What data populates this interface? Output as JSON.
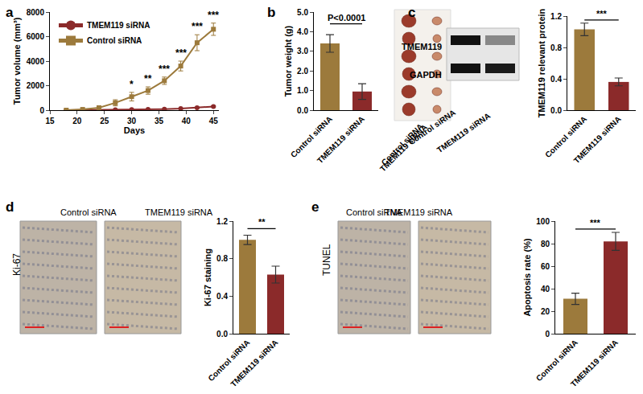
{
  "chart_data": [
    {
      "panel": "a",
      "type": "line",
      "x": [
        18,
        21,
        24,
        27,
        30,
        33,
        36,
        39,
        42,
        45
      ],
      "series": [
        {
          "name": "TMEM119 siRNA",
          "color": "#8b2a2a",
          "marker": "circle",
          "values": [
            0,
            10,
            20,
            30,
            50,
            70,
            90,
            130,
            200,
            300
          ],
          "errors": [
            5,
            5,
            10,
            10,
            15,
            20,
            20,
            30,
            40,
            50
          ]
        },
        {
          "name": "Control siRNA",
          "color": "#9c7a3c",
          "marker": "square",
          "values": [
            0,
            60,
            200,
            600,
            1100,
            1600,
            2400,
            3600,
            5500,
            6600
          ],
          "errors": [
            20,
            40,
            100,
            250,
            350,
            300,
            300,
            400,
            650,
            500
          ]
        }
      ],
      "xlabel": "Days",
      "ylabel": "Tumor volume (mm³)",
      "xlim": [
        15,
        46
      ],
      "xticks": [
        15,
        20,
        25,
        30,
        35,
        40,
        45
      ],
      "ylim": [
        0,
        8000
      ],
      "yticks": [
        0,
        2000,
        4000,
        6000,
        8000
      ],
      "legend": "upper left",
      "annotations": [
        {
          "x": 30,
          "y": 1500,
          "text": "*"
        },
        {
          "x": 33,
          "y": 1950,
          "text": "**"
        },
        {
          "x": 36,
          "y": 2750,
          "text": "***"
        },
        {
          "x": 39,
          "y": 4050,
          "text": "***"
        },
        {
          "x": 42,
          "y": 6200,
          "text": "***"
        },
        {
          "x": 45,
          "y": 7150,
          "text": "***"
        }
      ]
    },
    {
      "panel": "b",
      "type": "bar",
      "categories": [
        "Control siRNA",
        "TMEM119 siRNA"
      ],
      "values": [
        3.4,
        0.95
      ],
      "errors": [
        0.45,
        0.4
      ],
      "colors": [
        "#9c7a3c",
        "#8b2a2a"
      ],
      "ylabel": "Tumor weight (g)",
      "ylim": [
        0,
        5
      ],
      "yticks": [
        {
          "value": 0,
          "label": "0.0"
        },
        {
          "value": 1,
          "label": "1.0"
        },
        {
          "value": 2,
          "label": "2.0"
        },
        {
          "value": 3,
          "label": "3.0"
        },
        {
          "value": 4,
          "label": "4.0"
        },
        {
          "value": 5,
          "label": "5.0"
        }
      ],
      "annotations": [
        {
          "y": 4.4,
          "text": "P<0.0001"
        }
      ],
      "image_labels": [
        "Control siRNA",
        "TMEM119 siRNA"
      ]
    },
    {
      "panel": "c",
      "type": "bar",
      "categories": [
        "Control siRNA",
        "TMEM119 siRNA"
      ],
      "values": [
        1.03,
        0.36
      ],
      "errors": [
        0.08,
        0.05
      ],
      "colors": [
        "#9c7a3c",
        "#8b2a2a"
      ],
      "ylabel": "TMEM119 relevant protein",
      "ylim": [
        0,
        1.2
      ],
      "yticks": [
        {
          "value": 0,
          "label": "0.0"
        },
        {
          "value": 0.4,
          "label": "0.4"
        },
        {
          "value": 0.8,
          "label": "0.8"
        },
        {
          "value": 1.2,
          "label": "1.2"
        }
      ],
      "annotations": [
        {
          "y": 1.15,
          "text": "***"
        }
      ],
      "blot": {
        "rows": [
          "TMEM119",
          "GAPDH"
        ],
        "columns": [
          "Control siRNA",
          "TMEM119 siRNA"
        ]
      }
    },
    {
      "panel": "d",
      "type": "bar",
      "categories": [
        "Control siRNA",
        "TMEM119 siRNA"
      ],
      "values": [
        1.0,
        0.63
      ],
      "errors": [
        0.05,
        0.09
      ],
      "colors": [
        "#9c7a3c",
        "#8b2a2a"
      ],
      "ylabel": "Ki-67 staining",
      "ylim": [
        0,
        1.2
      ],
      "yticks": [
        {
          "value": 0,
          "label": "0.0"
        },
        {
          "value": 0.4,
          "label": "0.4"
        },
        {
          "value": 0.8,
          "label": "0.8"
        },
        {
          "value": 1.2,
          "label": "1.2"
        }
      ],
      "annotations": [
        {
          "y": 1.12,
          "text": "**"
        }
      ],
      "images": {
        "stain": "Ki-67",
        "labels": [
          "Control siRNA",
          "TMEM119 siRNA"
        ]
      }
    },
    {
      "panel": "e",
      "type": "bar",
      "categories": [
        "Control siRNA",
        "TMEM119 siRNA"
      ],
      "values": [
        31,
        82
      ],
      "errors": [
        5,
        8
      ],
      "colors": [
        "#9c7a3c",
        "#8b2a2a"
      ],
      "ylabel": "Apoptosis rate (%)",
      "ylim": [
        0,
        100
      ],
      "yticks": [
        0,
        20,
        40,
        60,
        80,
        100
      ],
      "annotations": [
        {
          "y": 93,
          "text": "***"
        }
      ],
      "images": {
        "stain": "TUNEL",
        "labels": [
          "Control siRNA",
          "TMEM119 siRNA"
        ]
      }
    }
  ]
}
